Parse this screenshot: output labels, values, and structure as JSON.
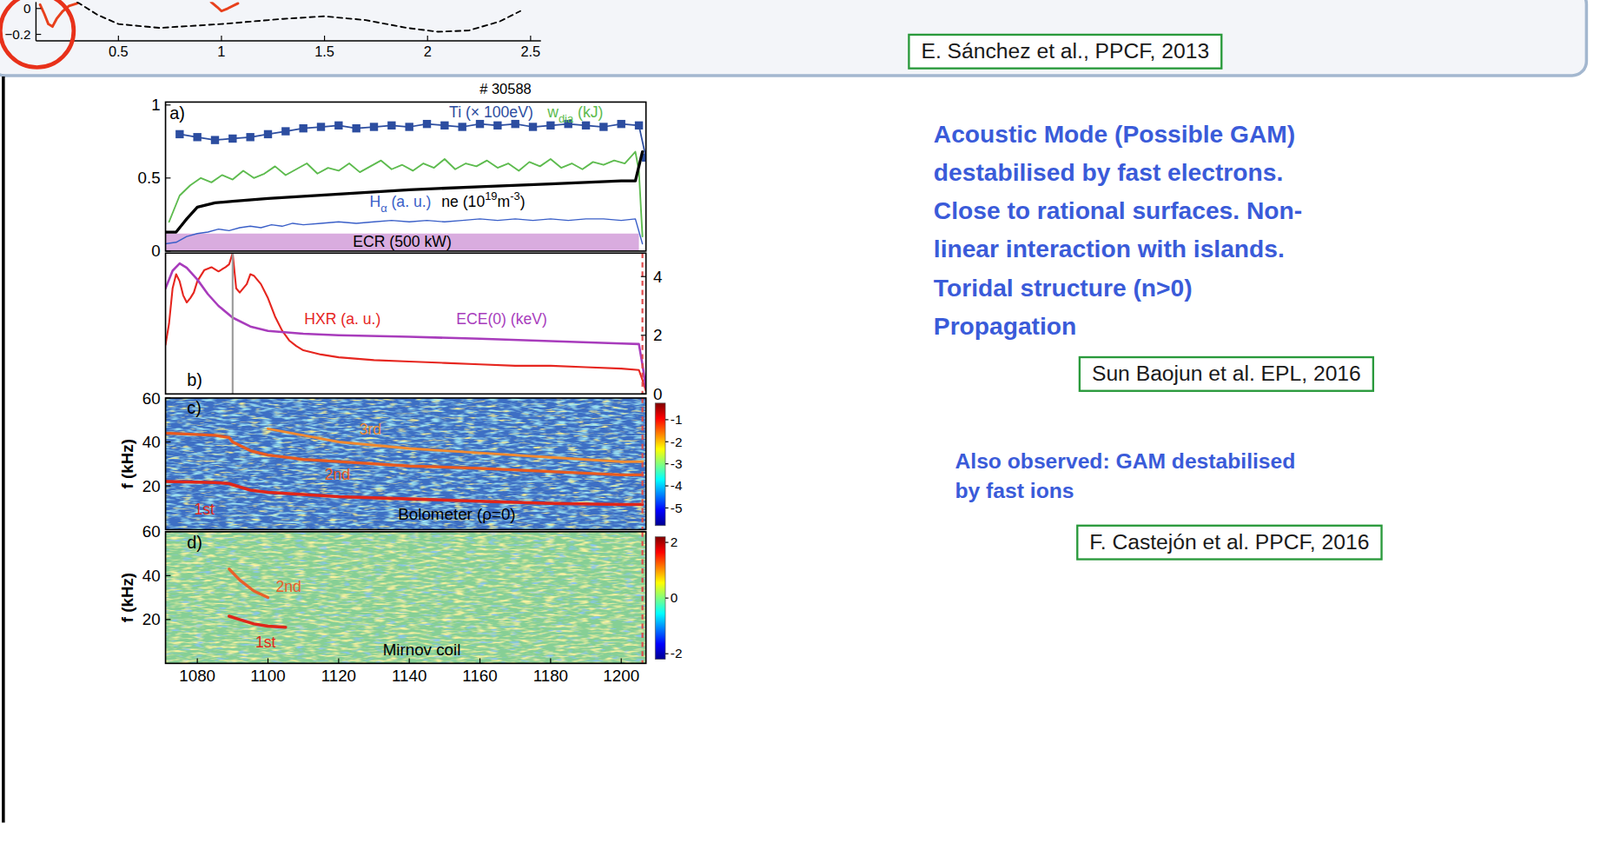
{
  "chart_data": [
    {
      "type": "line",
      "xlim": [
        0.1,
        2.55
      ],
      "xticks": [
        0.5,
        1,
        1.5,
        2,
        2.5
      ],
      "ylim": [
        -0.25,
        0.05
      ],
      "yticks": [
        {
          "value": -0.2,
          "label": "−0.2"
        },
        0
      ],
      "series": [
        {
          "color": "#e8401c",
          "x": [
            0.12,
            0.14,
            0.16,
            0.18,
            0.2,
            0.23,
            0.26,
            0.3,
            null,
            0.95,
            0.98,
            1.0,
            1.03,
            1.08
          ],
          "values": [
            0.03,
            -0.04,
            -0.12,
            -0.14,
            -0.08,
            -0.02,
            0.02,
            0.04,
            null,
            0.05,
            0.01,
            -0.02,
            0.0,
            0.04
          ]
        },
        {
          "color": "#000000",
          "line_style": "dashed",
          "x": [
            0.3,
            0.4,
            0.5,
            0.7,
            1.0,
            1.3,
            1.5,
            1.7,
            1.9,
            2.05,
            2.2,
            2.35,
            2.45
          ],
          "values": [
            0.05,
            -0.05,
            -0.12,
            -0.15,
            -0.12,
            -0.08,
            -0.06,
            -0.09,
            -0.15,
            -0.18,
            -0.17,
            -0.1,
            -0.02
          ]
        }
      ]
    },
    {
      "type": "line",
      "label": "a)",
      "shot": "# 30588",
      "xlim": [
        1071,
        1207
      ],
      "ylim": [
        0,
        1.02
      ],
      "yticks": [
        0,
        0.5,
        1
      ],
      "series": [
        {
          "name": "Ti (× 100eV)",
          "color": "#2c4da0",
          "marker": "square",
          "x": [
            1075,
            1080,
            1085,
            1090,
            1095,
            1100,
            1105,
            1110,
            1115,
            1120,
            1125,
            1130,
            1135,
            1140,
            1145,
            1150,
            1155,
            1160,
            1165,
            1170,
            1175,
            1180,
            1185,
            1190,
            1195,
            1200,
            1205,
            1207
          ],
          "values": [
            0.8,
            0.78,
            0.76,
            0.77,
            0.78,
            0.8,
            0.82,
            0.84,
            0.85,
            0.86,
            0.84,
            0.85,
            0.86,
            0.85,
            0.87,
            0.86,
            0.85,
            0.87,
            0.86,
            0.87,
            0.85,
            0.86,
            0.87,
            0.86,
            0.85,
            0.87,
            0.86,
            0.64
          ]
        },
        {
          "name_parts": [
            {
              "normal": "w"
            },
            {
              "sub": "dia"
            },
            {
              "normal": " (kJ)"
            }
          ],
          "color": "#5dbb4e",
          "x": [
            1072,
            1075,
            1078,
            1081,
            1084,
            1087,
            1090,
            1093,
            1096,
            1099,
            1102,
            1105,
            1108,
            1111,
            1114,
            1117,
            1120,
            1123,
            1126,
            1129,
            1132,
            1135,
            1138,
            1141,
            1144,
            1147,
            1150,
            1153,
            1156,
            1159,
            1162,
            1165,
            1168,
            1171,
            1174,
            1177,
            1180,
            1183,
            1186,
            1189,
            1192,
            1195,
            1198,
            1201,
            1204,
            1205,
            1206
          ],
          "values": [
            0.2,
            0.38,
            0.45,
            0.5,
            0.47,
            0.52,
            0.49,
            0.55,
            0.5,
            0.53,
            0.58,
            0.52,
            0.56,
            0.6,
            0.53,
            0.57,
            0.55,
            0.6,
            0.54,
            0.58,
            0.62,
            0.56,
            0.59,
            0.55,
            0.6,
            0.57,
            0.63,
            0.56,
            0.6,
            0.58,
            0.62,
            0.57,
            0.6,
            0.55,
            0.61,
            0.58,
            0.63,
            0.57,
            0.6,
            0.56,
            0.61,
            0.59,
            0.62,
            0.6,
            0.68,
            0.55,
            0.1
          ]
        },
        {
          "name_parts": [
            {
              "normal": "ne (10"
            },
            {
              "sup": "19"
            },
            {
              "normal": "m"
            },
            {
              "sup": "-3"
            },
            {
              "normal": ")"
            }
          ],
          "color": "#000000",
          "x": [
            1071,
            1074,
            1077,
            1080,
            1085,
            1090,
            1100,
            1120,
            1140,
            1160,
            1180,
            1200,
            1204,
            1206
          ],
          "values": [
            0.13,
            0.13,
            0.22,
            0.3,
            0.33,
            0.34,
            0.36,
            0.39,
            0.42,
            0.44,
            0.46,
            0.48,
            0.48,
            0.68
          ]
        },
        {
          "name_parts": [
            {
              "normal": "H"
            },
            {
              "sub": "α"
            },
            {
              "normal": " (a. u.)"
            }
          ],
          "color": "#3a5fc8",
          "x": [
            1071,
            1074,
            1077,
            1080,
            1083,
            1086,
            1089,
            1092,
            1095,
            1098,
            1101,
            1104,
            1107,
            1110,
            1115,
            1120,
            1125,
            1130,
            1135,
            1140,
            1145,
            1150,
            1155,
            1160,
            1165,
            1170,
            1175,
            1180,
            1185,
            1190,
            1195,
            1200,
            1204,
            1206
          ],
          "values": [
            0.05,
            0.06,
            0.1,
            0.12,
            0.13,
            0.15,
            0.14,
            0.16,
            0.17,
            0.16,
            0.18,
            0.17,
            0.19,
            0.18,
            0.19,
            0.2,
            0.19,
            0.2,
            0.21,
            0.2,
            0.21,
            0.2,
            0.21,
            0.22,
            0.21,
            0.22,
            0.21,
            0.22,
            0.21,
            0.22,
            0.22,
            0.21,
            0.22,
            0.05
          ]
        },
        {
          "name": "ECR (500 kW)",
          "type": "area",
          "color": "#d9acdf",
          "x": [
            1071,
            1205
          ],
          "values": [
            0.12,
            0.12
          ]
        }
      ]
    },
    {
      "type": "line",
      "label": "b)",
      "xlim": [
        1071,
        1207
      ],
      "ylim": [
        0,
        1
      ],
      "yticks": [],
      "y2lim": [
        0,
        4.8
      ],
      "y2ticks": [
        0,
        2,
        4
      ],
      "series": [
        {
          "name": "HXR (a. u.)",
          "color": "#e6261f",
          "x": [
            1071,
            1072,
            1073,
            1074,
            1075,
            1076,
            1077,
            1078,
            1079,
            1080,
            1082,
            1084,
            1086,
            1088,
            1089,
            1090,
            1091,
            1092,
            1094,
            1095,
            1096,
            1098,
            1100,
            1102,
            1104,
            1106,
            1108,
            1110,
            1115,
            1120,
            1130,
            1140,
            1150,
            1160,
            1170,
            1180,
            1190,
            1200,
            1205,
            1206,
            1207
          ],
          "values": [
            0.35,
            0.5,
            0.75,
            0.85,
            0.8,
            0.7,
            0.65,
            0.68,
            0.72,
            0.8,
            0.88,
            0.9,
            0.87,
            0.9,
            0.92,
            1.0,
            0.75,
            0.72,
            0.78,
            0.85,
            0.84,
            0.78,
            0.68,
            0.55,
            0.45,
            0.38,
            0.34,
            0.31,
            0.28,
            0.26,
            0.24,
            0.23,
            0.22,
            0.21,
            0.2,
            0.2,
            0.19,
            0.18,
            0.17,
            0.1,
            0.02
          ]
        },
        {
          "name": "ECE(0) (keV)",
          "color": "#a83cbc",
          "axis": "y2",
          "x": [
            1071,
            1073,
            1075,
            1077,
            1080,
            1083,
            1086,
            1090,
            1095,
            1100,
            1110,
            1120,
            1140,
            1160,
            1180,
            1200,
            1205,
            1206,
            1207
          ],
          "values": [
            3.6,
            4.2,
            4.45,
            4.3,
            3.9,
            3.4,
            3.0,
            2.6,
            2.3,
            2.15,
            2.05,
            2.0,
            1.95,
            1.88,
            1.8,
            1.72,
            1.7,
            1.0,
            0.2
          ]
        }
      ],
      "vlines": [
        {
          "x": 1090,
          "color": "#9a9a9a"
        },
        {
          "x": 1206,
          "color": "#e04848",
          "line_style": "dashed"
        }
      ]
    },
    {
      "type": "line",
      "label": "c)",
      "title": "Bolometer (ρ=0)",
      "ylabel": "f (kHz)",
      "xlim": [
        1071,
        1207
      ],
      "ylim": [
        0,
        60
      ],
      "yticks": [
        20,
        40,
        60
      ],
      "colorbar": {
        "range": [
          -5.8,
          -0.25
        ],
        "ticks": [
          -1,
          -2,
          -3,
          -4,
          -5
        ]
      },
      "series": [
        {
          "name": "3rd",
          "color": "#f08a30",
          "x": [
            1100,
            1110,
            1120,
            1140,
            1160,
            1180,
            1200,
            1206
          ],
          "values": [
            46,
            43,
            40,
            37,
            35,
            33,
            31,
            31
          ]
        },
        {
          "name": "2nd",
          "color": "#e85a20",
          "x": [
            1071,
            1085,
            1089,
            1090,
            1095,
            1100,
            1110,
            1120,
            1140,
            1160,
            1180,
            1200,
            1206
          ],
          "values": [
            44,
            43,
            42,
            40,
            36,
            34,
            32,
            31,
            29,
            28,
            26.5,
            25,
            25
          ]
        },
        {
          "name": "1st",
          "color": "#e0261a",
          "x": [
            1071,
            1085,
            1089,
            1090,
            1095,
            1100,
            1110,
            1120,
            1140,
            1160,
            1180,
            1200,
            1206
          ],
          "values": [
            22,
            21.5,
            21,
            20.5,
            18,
            17,
            16,
            15,
            14,
            13,
            12,
            11.5,
            11.5
          ]
        }
      ],
      "vlines": [
        {
          "x": 1206,
          "color": "#e04848",
          "line_style": "dashed"
        }
      ]
    },
    {
      "type": "line",
      "label": "d)",
      "title": "Mirnov coil",
      "ylabel": "f (kHz)",
      "xlim": [
        1071,
        1207
      ],
      "xticks": [
        1080,
        1100,
        1120,
        1140,
        1160,
        1180,
        1200
      ],
      "ylim": [
        0,
        60
      ],
      "yticks": [
        20,
        40,
        60
      ],
      "colorbar": {
        "range": [
          -2.2,
          2.2
        ],
        "ticks": [
          -2,
          0,
          2
        ]
      },
      "series": [
        {
          "name": "2nd",
          "color": "#e8602a",
          "x": [
            1089,
            1092,
            1096,
            1100
          ],
          "values": [
            43,
            38,
            33,
            30
          ]
        },
        {
          "name": "1st",
          "color": "#e0261a",
          "x": [
            1089,
            1092,
            1096,
            1100,
            1105
          ],
          "values": [
            21.5,
            20,
            18,
            17,
            16.5
          ]
        }
      ],
      "vlines": [
        {
          "x": 1206,
          "color": "#e04848",
          "line_style": "dashed"
        }
      ]
    }
  ],
  "slide": {
    "bullets": [
      "Acoustic Mode (Possible GAM)",
      "destabilised by fast electrons.",
      "Close to rational surfaces. Non-",
      "linear interaction with islands.",
      "Toridal structure (n>0)",
      "Propagation"
    ],
    "note": [
      "Also observed: GAM destabilised",
      "by fast ions"
    ],
    "citations": [
      "E. Sánchez et al., PPCF, 2013",
      "Sun Baojun et al. EPL, 2016",
      "F. Castejón et al. PPCF, 2016"
    ]
  }
}
